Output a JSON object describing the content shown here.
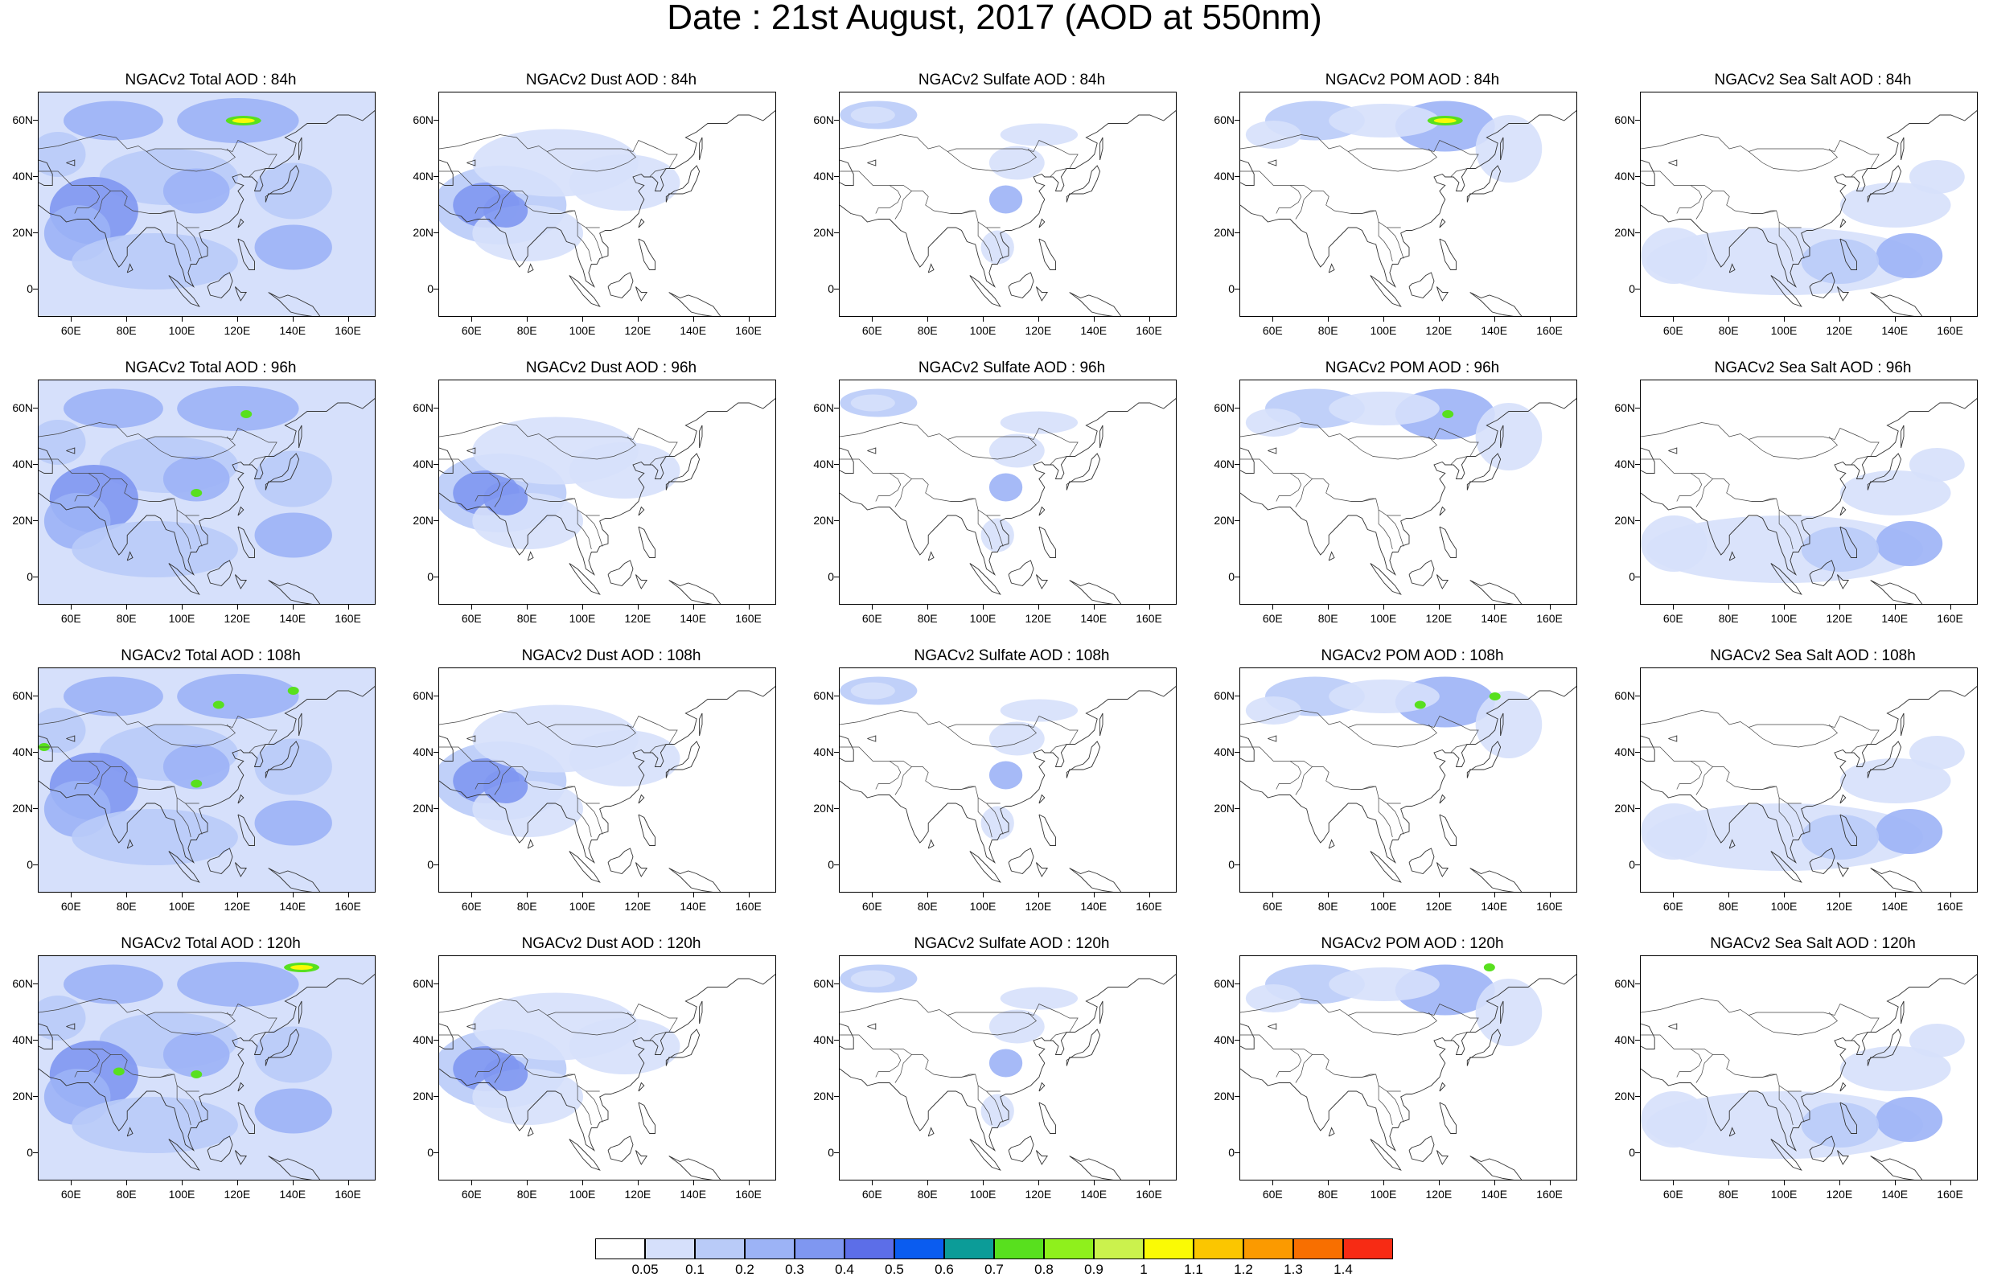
{
  "title": "Date : 21st August, 2017 (AOD at 550nm)",
  "lat_labels": [
    "60N",
    "40N",
    "20N",
    "0"
  ],
  "lon_labels": [
    "60E",
    "80E",
    "100E",
    "120E",
    "140E",
    "160E"
  ],
  "panels": [
    [
      {
        "title": "NGACv2 Total AOD : 84h",
        "type": "total",
        "hot": [
          [
            122,
            60,
            2
          ]
        ]
      },
      {
        "title": "NGACv2 Dust AOD : 84h",
        "type": "dust",
        "hot": []
      },
      {
        "title": "NGACv2 Sulfate AOD : 84h",
        "type": "sulfate",
        "hot": []
      },
      {
        "title": "NGACv2 POM AOD : 84h",
        "type": "pom",
        "hot": [
          [
            122,
            60,
            2
          ]
        ]
      },
      {
        "title": "NGACv2 Sea Salt AOD : 84h",
        "type": "seasalt",
        "hot": []
      }
    ],
    [
      {
        "title": "NGACv2 Total AOD : 96h",
        "type": "total",
        "hot": [
          [
            123,
            58,
            1
          ],
          [
            105,
            30,
            1
          ]
        ]
      },
      {
        "title": "NGACv2 Dust AOD : 96h",
        "type": "dust",
        "hot": []
      },
      {
        "title": "NGACv2 Sulfate AOD : 96h",
        "type": "sulfate",
        "hot": []
      },
      {
        "title": "NGACv2 POM AOD : 96h",
        "type": "pom",
        "hot": [
          [
            123,
            58,
            1
          ]
        ]
      },
      {
        "title": "NGACv2 Sea Salt AOD : 96h",
        "type": "seasalt",
        "hot": []
      }
    ],
    [
      {
        "title": "NGACv2 Total AOD : 108h",
        "type": "total",
        "hot": [
          [
            140,
            62,
            1
          ],
          [
            113,
            57,
            1
          ],
          [
            50,
            42,
            1
          ],
          [
            105,
            29,
            1
          ]
        ]
      },
      {
        "title": "NGACv2 Dust AOD : 108h",
        "type": "dust",
        "hot": []
      },
      {
        "title": "NGACv2 Sulfate AOD : 108h",
        "type": "sulfate",
        "hot": []
      },
      {
        "title": "NGACv2 POM AOD : 108h",
        "type": "pom",
        "hot": [
          [
            113,
            57,
            1
          ],
          [
            140,
            60,
            1
          ]
        ]
      },
      {
        "title": "NGACv2 Sea Salt AOD : 108h",
        "type": "seasalt",
        "hot": []
      }
    ],
    [
      {
        "title": "NGACv2 Total AOD : 120h",
        "type": "total",
        "hot": [
          [
            143,
            66,
            2
          ],
          [
            77,
            29,
            1
          ],
          [
            105,
            28,
            1
          ]
        ]
      },
      {
        "title": "NGACv2 Dust AOD : 120h",
        "type": "dust",
        "hot": []
      },
      {
        "title": "NGACv2 Sulfate AOD : 120h",
        "type": "sulfate",
        "hot": []
      },
      {
        "title": "NGACv2 POM AOD : 120h",
        "type": "pom",
        "hot": [
          [
            138,
            66,
            1
          ]
        ]
      },
      {
        "title": "NGACv2 Sea Salt  AOD : 120h",
        "type": "seasalt",
        "hot": []
      }
    ]
  ],
  "colorbar": {
    "labels": [
      "0.05",
      "0.1",
      "0.2",
      "0.3",
      "0.4",
      "0.5",
      "0.6",
      "0.7",
      "0.8",
      "0.9",
      "1",
      "1.1",
      "1.2",
      "1.3",
      "1.4"
    ],
    "colors": [
      "#ffffff",
      "#d6e0fb",
      "#b9cbf8",
      "#9cb3f6",
      "#7f97f1",
      "#5c6ee8",
      "#0a5cf0",
      "#0c9c98",
      "#58e01e",
      "#8ff01c",
      "#cbf24d",
      "#fafa05",
      "#fbc600",
      "#fb9a00",
      "#f86f00",
      "#f72b14"
    ]
  }
}
